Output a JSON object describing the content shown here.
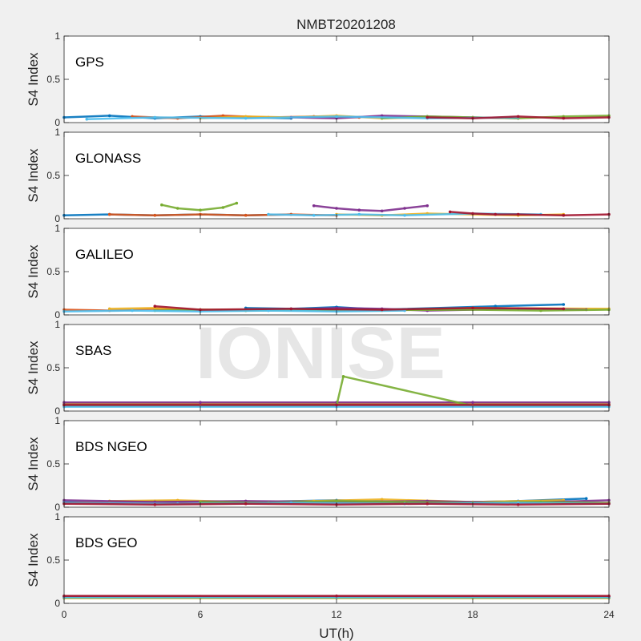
{
  "title": "NMBT20201208",
  "watermark": "IONISE",
  "xlabel": "UT(h)",
  "ylabel": "S4 Index",
  "colors": [
    "#0072BD",
    "#D95319",
    "#EDB120",
    "#7E2F8E",
    "#77AC30",
    "#4DBEEE",
    "#A2142F"
  ],
  "chart_data": [
    {
      "type": "scatter",
      "label": "GPS",
      "xlim": [
        0,
        24
      ],
      "ylim": [
        0,
        1
      ],
      "xticks": [
        0,
        6,
        12,
        18,
        24
      ],
      "xtick_labels": [
        "0",
        "6",
        "12",
        "18",
        "24"
      ],
      "yticks": [
        0,
        0.5,
        1
      ],
      "ytick_labels": [
        "0",
        "0.5",
        "1"
      ],
      "grid": false,
      "series": [
        {
          "x": [
            0,
            2,
            4,
            6,
            8,
            10
          ],
          "y": [
            0.06,
            0.08,
            0.05,
            0.07,
            0.06,
            0.05
          ]
        },
        {
          "x": [
            3,
            5,
            7,
            9,
            11,
            13
          ],
          "y": [
            0.07,
            0.05,
            0.08,
            0.06,
            0.07,
            0.06
          ]
        },
        {
          "x": [
            6,
            8,
            10,
            12,
            14,
            16
          ],
          "y": [
            0.05,
            0.07,
            0.06,
            0.08,
            0.05,
            0.06
          ]
        },
        {
          "x": [
            10,
            12,
            14,
            16,
            18,
            20
          ],
          "y": [
            0.06,
            0.05,
            0.08,
            0.07,
            0.06,
            0.05
          ]
        },
        {
          "x": [
            14,
            16,
            18,
            20,
            22,
            24
          ],
          "y": [
            0.05,
            0.07,
            0.06,
            0.05,
            0.07,
            0.08
          ]
        },
        {
          "x": [
            1,
            4,
            8,
            12,
            16,
            20
          ],
          "y": [
            0.04,
            0.06,
            0.05,
            0.07,
            0.05,
            0.06
          ]
        },
        {
          "x": [
            16,
            18,
            20,
            22,
            24
          ],
          "y": [
            0.06,
            0.05,
            0.07,
            0.05,
            0.06
          ]
        }
      ]
    },
    {
      "type": "scatter",
      "label": "GLONASS",
      "xlim": [
        0,
        24
      ],
      "ylim": [
        0,
        1
      ],
      "xticks": [
        0,
        6,
        12,
        18,
        24
      ],
      "xtick_labels": [
        "0",
        "6",
        "12",
        "18",
        "24"
      ],
      "yticks": [
        0,
        0.5,
        1
      ],
      "ytick_labels": [
        "0",
        "0.5",
        "1"
      ],
      "grid": false,
      "series": [
        {
          "x": [
            0,
            2,
            4,
            6,
            8,
            10
          ],
          "y": [
            0.04,
            0.05,
            0.04,
            0.05,
            0.04,
            0.05
          ]
        },
        {
          "x": [
            2,
            4,
            6,
            8,
            10,
            12
          ],
          "y": [
            0.05,
            0.04,
            0.05,
            0.04,
            0.05,
            0.04
          ]
        },
        {
          "x": [
            12,
            14,
            16,
            18,
            20,
            22
          ],
          "y": [
            0.05,
            0.04,
            0.06,
            0.05,
            0.04,
            0.05
          ]
        },
        {
          "x": [
            11,
            12,
            13,
            14,
            15,
            16
          ],
          "y": [
            0.15,
            0.12,
            0.1,
            0.09,
            0.12,
            0.15
          ]
        },
        {
          "x": [
            4.3,
            5,
            6,
            7,
            7.6
          ],
          "y": [
            0.16,
            0.12,
            0.1,
            0.13,
            0.18
          ]
        },
        {
          "x": [
            9,
            11,
            13,
            15,
            18,
            21
          ],
          "y": [
            0.05,
            0.04,
            0.05,
            0.04,
            0.06,
            0.05
          ]
        },
        {
          "x": [
            17,
            18,
            19,
            20,
            22,
            24
          ],
          "y": [
            0.08,
            0.06,
            0.05,
            0.05,
            0.04,
            0.05
          ]
        }
      ]
    },
    {
      "type": "scatter",
      "label": "GALILEO",
      "xlim": [
        0,
        24
      ],
      "ylim": [
        0,
        1
      ],
      "xticks": [
        0,
        6,
        12,
        18,
        24
      ],
      "xtick_labels": [
        "0",
        "6",
        "12",
        "18",
        "24"
      ],
      "yticks": [
        0,
        0.5,
        1
      ],
      "ytick_labels": [
        "0",
        "0.5",
        "1"
      ],
      "grid": false,
      "series": [
        {
          "x": [
            8,
            10,
            12,
            14,
            19,
            22
          ],
          "y": [
            0.08,
            0.07,
            0.09,
            0.06,
            0.1,
            0.12
          ]
        },
        {
          "x": [
            0,
            2,
            4,
            6,
            8,
            10
          ],
          "y": [
            0.06,
            0.05,
            0.07,
            0.06,
            0.05,
            0.06
          ]
        },
        {
          "x": [
            2,
            4,
            6,
            14,
            18,
            24
          ],
          "y": [
            0.07,
            0.08,
            0.06,
            0.05,
            0.08,
            0.07
          ]
        },
        {
          "x": [
            10,
            12,
            14,
            16,
            20,
            23
          ],
          "y": [
            0.06,
            0.08,
            0.07,
            0.05,
            0.07,
            0.06
          ]
        },
        {
          "x": [
            4,
            6,
            8,
            18,
            21,
            24
          ],
          "y": [
            0.05,
            0.06,
            0.05,
            0.06,
            0.05,
            0.06
          ]
        },
        {
          "x": [
            0,
            3,
            6,
            9,
            12,
            15
          ],
          "y": [
            0.04,
            0.05,
            0.04,
            0.05,
            0.04,
            0.05
          ]
        },
        {
          "x": [
            4,
            6,
            10,
            14,
            18,
            22
          ],
          "y": [
            0.1,
            0.06,
            0.07,
            0.06,
            0.08,
            0.07
          ]
        }
      ]
    },
    {
      "type": "scatter",
      "label": "SBAS",
      "xlim": [
        0,
        24
      ],
      "ylim": [
        0,
        1
      ],
      "xticks": [
        0,
        6,
        12,
        18,
        24
      ],
      "xtick_labels": [
        "0",
        "6",
        "12",
        "18",
        "24"
      ],
      "yticks": [
        0,
        0.5,
        1
      ],
      "ytick_labels": [
        "0",
        "0.5",
        "1"
      ],
      "grid": false,
      "series": [
        {
          "x": [
            0,
            6,
            12,
            18,
            24
          ],
          "y": [
            0.08,
            0.08,
            0.08,
            0.08,
            0.08
          ]
        },
        {
          "x": [
            0,
            6,
            12,
            18,
            24
          ],
          "y": [
            0.07,
            0.07,
            0.07,
            0.07,
            0.07
          ]
        },
        {
          "x": [
            0,
            6,
            12,
            18,
            24
          ],
          "y": [
            0.09,
            0.09,
            0.09,
            0.09,
            0.09
          ]
        },
        {
          "x": [
            0,
            6,
            12,
            18,
            24
          ],
          "y": [
            0.1,
            0.1,
            0.1,
            0.1,
            0.1
          ]
        },
        {
          "x": [
            0,
            6,
            12,
            12.3,
            18,
            24
          ],
          "y": [
            0.06,
            0.06,
            0.06,
            0.4,
            0.06,
            0.06
          ]
        },
        {
          "x": [
            0,
            12,
            24
          ],
          "y": [
            0.05,
            0.05,
            0.05
          ]
        },
        {
          "x": [
            0,
            12,
            24
          ],
          "y": [
            0.07,
            0.07,
            0.07
          ]
        }
      ]
    },
    {
      "type": "scatter",
      "label": "BDS NGEO",
      "xlim": [
        0,
        24
      ],
      "ylim": [
        0,
        1
      ],
      "xticks": [
        0,
        6,
        12,
        18,
        24
      ],
      "xtick_labels": [
        "0",
        "6",
        "12",
        "18",
        "24"
      ],
      "yticks": [
        0,
        0.5,
        1
      ],
      "ytick_labels": [
        "0",
        "0.5",
        "1"
      ],
      "grid": false,
      "series": [
        {
          "x": [
            0,
            2,
            4,
            8,
            12,
            16,
            20,
            23
          ],
          "y": [
            0.06,
            0.05,
            0.07,
            0.06,
            0.08,
            0.05,
            0.07,
            0.1
          ]
        },
        {
          "x": [
            0,
            3,
            6,
            9,
            12,
            15
          ],
          "y": [
            0.05,
            0.06,
            0.04,
            0.06,
            0.05,
            0.06
          ]
        },
        {
          "x": [
            2,
            5,
            8,
            11,
            14,
            18,
            22
          ],
          "y": [
            0.07,
            0.08,
            0.06,
            0.07,
            0.09,
            0.06,
            0.08
          ]
        },
        {
          "x": [
            0,
            4,
            8,
            12,
            16,
            20,
            24
          ],
          "y": [
            0.08,
            0.06,
            0.07,
            0.06,
            0.07,
            0.05,
            0.08
          ]
        },
        {
          "x": [
            6,
            9,
            12,
            15,
            18,
            21,
            24
          ],
          "y": [
            0.06,
            0.05,
            0.07,
            0.06,
            0.05,
            0.06,
            0.05
          ]
        },
        {
          "x": [
            0,
            5,
            10,
            15,
            20,
            24
          ],
          "y": [
            0.05,
            0.04,
            0.05,
            0.04,
            0.05,
            0.04
          ]
        },
        {
          "x": [
            0,
            4,
            8,
            12,
            16,
            20,
            24
          ],
          "y": [
            0.04,
            0.03,
            0.04,
            0.03,
            0.04,
            0.03,
            0.04
          ]
        }
      ]
    },
    {
      "type": "scatter",
      "label": "BDS GEO",
      "xlim": [
        0,
        24
      ],
      "ylim": [
        0,
        1
      ],
      "xticks": [
        0,
        6,
        12,
        18,
        24
      ],
      "xtick_labels": [
        "0",
        "6",
        "12",
        "18",
        "24"
      ],
      "yticks": [
        0,
        0.5,
        1
      ],
      "ytick_labels": [
        "0",
        "0.5",
        "1"
      ],
      "grid": false,
      "series": [
        {
          "x": [
            0,
            6,
            12,
            18,
            24
          ],
          "y": [
            0.07,
            0.07,
            0.07,
            0.07,
            0.07
          ]
        },
        {
          "x": [
            0,
            6,
            12,
            18,
            24
          ],
          "y": [
            0.08,
            0.08,
            0.08,
            0.08,
            0.08
          ]
        },
        {
          "x": [
            0,
            6,
            12,
            18,
            24
          ],
          "y": [
            0.06,
            0.06,
            0.06,
            0.06,
            0.06
          ]
        },
        {
          "x": [
            0,
            12,
            24
          ],
          "y": [
            0.075,
            0.075,
            0.075
          ]
        },
        {
          "x": [
            0,
            12,
            24
          ],
          "y": [
            0.065,
            0.065,
            0.065
          ]
        },
        {
          "x": [
            0,
            12,
            24
          ],
          "y": [
            0.07,
            0.07,
            0.07
          ]
        },
        {
          "x": [
            0,
            12,
            24
          ],
          "y": [
            0.085,
            0.085,
            0.085
          ]
        }
      ]
    }
  ]
}
